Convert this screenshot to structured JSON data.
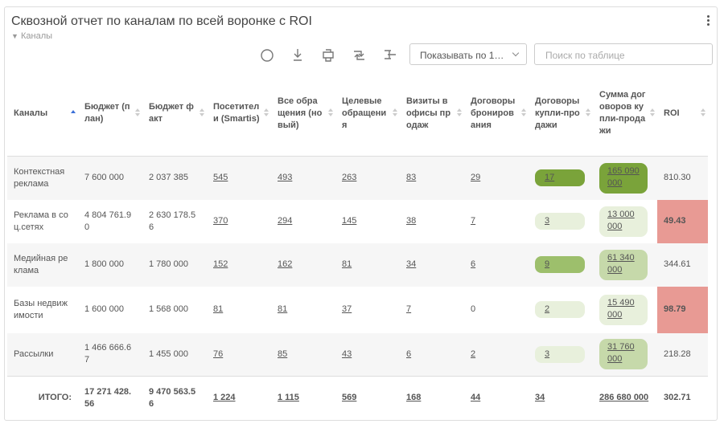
{
  "header": {
    "title": "Сквозной отчет по каналам по всей воронке с ROI",
    "filter": "Каналы"
  },
  "toolbar": {
    "page_size": "Показывать по 1…",
    "search_placeholder": "Поиск по таблице"
  },
  "table": {
    "columns": [
      "Каналы",
      "Бюджет (план)",
      "Бюджет факт",
      "Посетители (Smartis)",
      "Все обращения (новый)",
      "Целевые обращения",
      "Визиты в офисы продаж",
      "Договоры бронирования",
      "Договоры купли-продажи",
      "Сумма договоров купли-продажи",
      "ROI"
    ],
    "rows": [
      [
        "Контекстная реклама",
        "7 600 000",
        "2 037 385",
        "545",
        "493",
        "263",
        "83",
        "29",
        "17",
        "165 090 000",
        "810.30"
      ],
      [
        "Реклама в соц.сетях",
        "4 804 761.90",
        "2 630 178.56",
        "370",
        "294",
        "145",
        "38",
        "7",
        "3",
        "13 000 000",
        "49.43"
      ],
      [
        "Медийная реклама",
        "1 800 000",
        "1 780 000",
        "152",
        "162",
        "81",
        "34",
        "6",
        "9",
        "61 340 000",
        "344.61"
      ],
      [
        "Базы недвижимости",
        "1 600 000",
        "1 568 000",
        "81",
        "81",
        "37",
        "7",
        "0",
        "2",
        "15 490 000",
        "98.79"
      ],
      [
        "Рассылки",
        "1 466 666.67",
        "1 455 000",
        "76",
        "85",
        "43",
        "6",
        "2",
        "3",
        "31 760 000",
        "218.28"
      ]
    ],
    "total": [
      "ИТОГО:",
      "17 271 428.56",
      "9 470 563.56",
      "1 224",
      "1 115",
      "569",
      "168",
      "44",
      "34",
      "286 680 000",
      "302.71"
    ]
  }
}
